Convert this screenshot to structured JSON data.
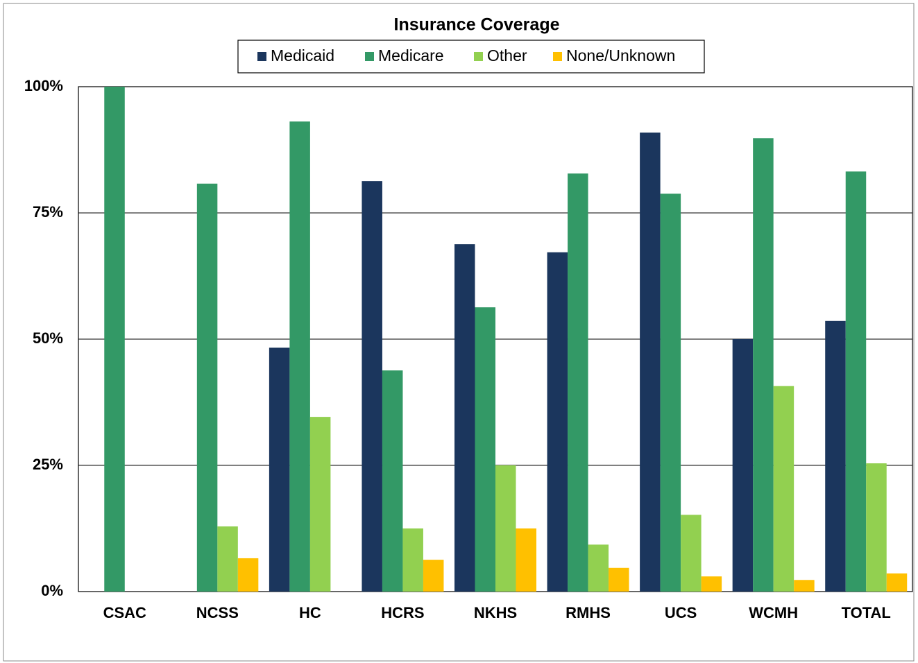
{
  "chart_data": {
    "type": "bar",
    "title": "Insurance Coverage",
    "categories": [
      "CSAC",
      "NCSS",
      "HC",
      "HCRS",
      "NKHS",
      "RMHS",
      "UCS",
      "WCMH",
      "TOTAL"
    ],
    "series": [
      {
        "name": "Medicaid",
        "color": "#1b365d",
        "values": [
          0,
          0,
          48.3,
          81.3,
          68.8,
          67.2,
          90.9,
          50,
          53.6
        ]
      },
      {
        "name": "Medicare",
        "color": "#339966",
        "values": [
          100,
          80.8,
          93.1,
          43.8,
          56.3,
          82.8,
          78.8,
          89.8,
          83.2
        ]
      },
      {
        "name": "Other",
        "color": "#92d050",
        "values": [
          0,
          12.9,
          34.6,
          12.5,
          25,
          9.3,
          15.2,
          40.7,
          25.4
        ]
      },
      {
        "name": "None/Unknown",
        "color": "#ffc000",
        "values": [
          0,
          6.6,
          0,
          6.3,
          12.5,
          4.7,
          3.0,
          2.3,
          3.6
        ]
      }
    ],
    "ylim": [
      0,
      100
    ],
    "yticks": [
      {
        "value": 0,
        "label": "0%"
      },
      {
        "value": 25,
        "label": "25%"
      },
      {
        "value": 50,
        "label": "50%"
      },
      {
        "value": 75,
        "label": "75%"
      },
      {
        "value": 100,
        "label": "100%"
      }
    ],
    "grid": true,
    "legend": "top"
  }
}
